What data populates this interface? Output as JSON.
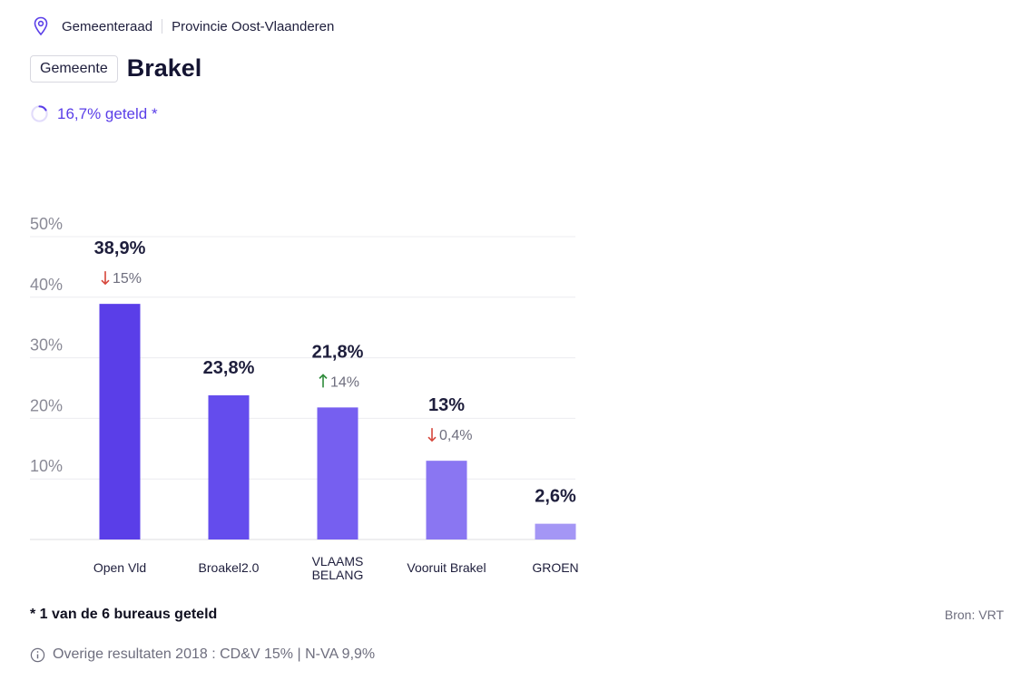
{
  "breadcrumb": {
    "council": "Gemeenteraad",
    "province": "Provincie Oost-Vlaanderen",
    "icon": "location-pin-icon"
  },
  "header": {
    "tag": "Gemeente",
    "title": "Brakel"
  },
  "progress": {
    "label": "16,7% geteld *",
    "fraction": 0.167
  },
  "colors": {
    "accent": "#5a3ee8",
    "up": "#2e8b3a",
    "down": "#d6453a"
  },
  "chart_data": {
    "type": "bar",
    "categories": [
      "Open Vld",
      "Broakel2.0",
      "VLAAMS BELANG",
      "Vooruit Brakel",
      "GROEN"
    ],
    "values": [
      38.9,
      23.8,
      21.8,
      13,
      2.6
    ],
    "value_labels": [
      "38,9%",
      "23,8%",
      "21,8%",
      "13%",
      "2,6%"
    ],
    "changes": [
      {
        "dir": "down",
        "label": "15%"
      },
      {
        "dir": "",
        "label": ""
      },
      {
        "dir": "up",
        "label": "14%"
      },
      {
        "dir": "down",
        "label": "0,4%"
      },
      {
        "dir": "",
        "label": ""
      }
    ],
    "bar_colors": [
      "#5a3ee8",
      "#644ced",
      "#765ff0",
      "#8a76f2",
      "#a496f5"
    ],
    "yticks": [
      "10%",
      "20%",
      "30%",
      "40%",
      "50%"
    ],
    "ytick_values": [
      10,
      20,
      30,
      40,
      50
    ],
    "ylim": [
      0,
      50
    ],
    "grid": true
  },
  "footer": {
    "note": "* 1 van de 6 bureaus geteld",
    "source": "Bron: VRT",
    "other_results": "Overige resultaten 2018 : CD&V 15% | N-VA 9,9%"
  }
}
